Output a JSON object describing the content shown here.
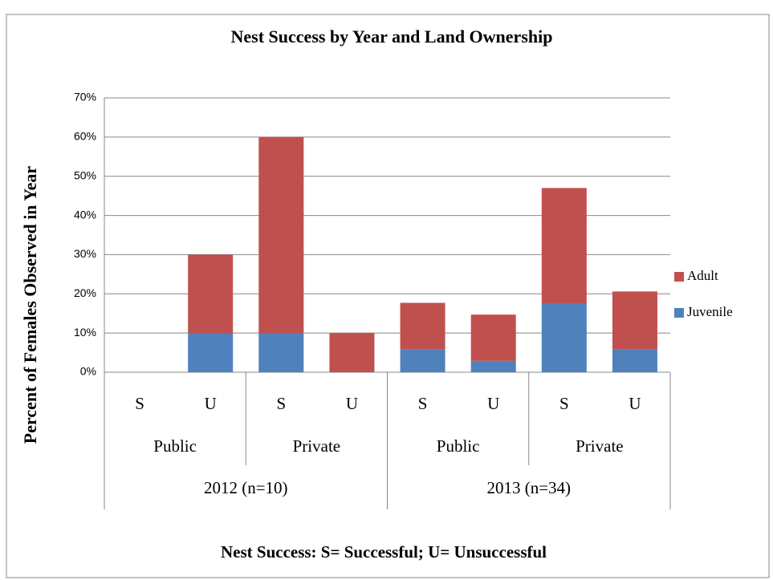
{
  "chart_data": {
    "type": "stacked_bar",
    "title": "Nest Success by Year and Land Ownership",
    "y_label": "Percent of Females Observed in Year",
    "x_label": "Nest Success:   S= Successful; U= Unsuccessful",
    "categories": [
      "S",
      "U",
      "S",
      "U",
      "S",
      "U",
      "S",
      "U"
    ],
    "category_groups": [
      "Public",
      "Private",
      "Public",
      "Private"
    ],
    "category_years": [
      "2012 (n=10)",
      "2013 (n=34)"
    ],
    "series": [
      {
        "name": "Juvenile",
        "color": "#4f81bd",
        "values": [
          0,
          10,
          10,
          0,
          5.9,
          2.9,
          17.6,
          5.9
        ]
      },
      {
        "name": "Adult",
        "color": "#c0504d",
        "values": [
          0,
          20,
          50,
          10,
          11.8,
          11.8,
          29.4,
          14.7
        ]
      }
    ],
    "ylim": [
      0,
      70
    ],
    "yticks": [
      {
        "value": 0,
        "label": "0%"
      },
      {
        "value": 10,
        "label": "10%"
      },
      {
        "value": 20,
        "label": "20%"
      },
      {
        "value": 30,
        "label": "30%"
      },
      {
        "value": 40,
        "label": "40%"
      },
      {
        "value": 50,
        "label": "50%"
      },
      {
        "value": 60,
        "label": "60%"
      },
      {
        "value": 70,
        "label": "70%"
      }
    ],
    "grid": true,
    "legend": "right"
  }
}
